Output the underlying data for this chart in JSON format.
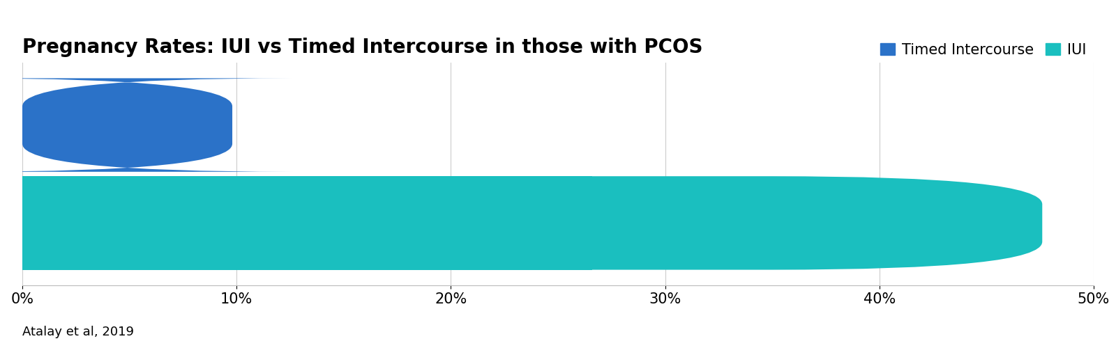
{
  "title": "Pregnancy Rates: IUI vs Timed Intercourse in those with PCOS",
  "categories": [
    "Timed Intercourse",
    "IUI"
  ],
  "values": [
    0.098,
    0.476
  ],
  "colors": [
    "#2B72C8",
    "#1ABFBF"
  ],
  "legend_labels": [
    "Timed Intercourse",
    "IUI"
  ],
  "legend_colors": [
    "#2B72C8",
    "#1ABFBF"
  ],
  "xlim": [
    0,
    0.5
  ],
  "xticks": [
    0.0,
    0.1,
    0.2,
    0.3,
    0.4,
    0.5
  ],
  "xticklabels": [
    "0%",
    "10%",
    "20%",
    "30%",
    "40%",
    "50%"
  ],
  "footnote": "Atalay et al, 2019",
  "background_color": "#ffffff",
  "title_fontsize": 20,
  "tick_fontsize": 15,
  "legend_fontsize": 15,
  "footnote_fontsize": 13
}
